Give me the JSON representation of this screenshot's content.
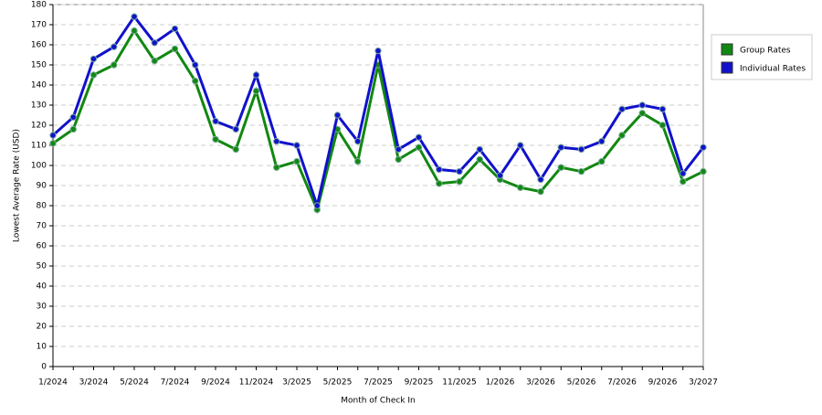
{
  "chart_data": {
    "type": "line",
    "xlabel": "Month of Check In",
    "ylabel": "Lowest Average Rate (USD)",
    "categories": [
      "1/2024",
      null,
      "3/2024",
      null,
      "5/2024",
      null,
      "7/2024",
      null,
      "9/2024",
      null,
      "11/2024",
      null,
      "3/2025",
      null,
      "5/2025",
      null,
      "7/2025",
      null,
      "9/2025",
      null,
      "11/2025",
      null,
      "1/2026",
      null,
      "3/2026",
      null,
      "5/2026",
      null,
      "7/2026",
      null,
      "9/2026",
      null,
      "3/2027"
    ],
    "series": [
      {
        "name": "Group Rates",
        "color": "#118811",
        "values": [
          111,
          118,
          145,
          150,
          167,
          152,
          158,
          142,
          113,
          108,
          137,
          99,
          102,
          78,
          118,
          102,
          150,
          103,
          109,
          91,
          92,
          103,
          93,
          89,
          87,
          99,
          97,
          102,
          115,
          126,
          120,
          92,
          97
        ]
      },
      {
        "name": "Individual Rates",
        "color": "#1111cc",
        "values": [
          115,
          124,
          153,
          159,
          174,
          161,
          168,
          150,
          122,
          118,
          145,
          112,
          110,
          80,
          125,
          112,
          157,
          108,
          114,
          98,
          97,
          108,
          95,
          110,
          93,
          109,
          108,
          112,
          128,
          130,
          128,
          96,
          109
        ]
      }
    ],
    "ylim": [
      0,
      180
    ],
    "yticks": [
      0,
      10,
      20,
      30,
      40,
      50,
      60,
      70,
      80,
      90,
      100,
      110,
      120,
      130,
      140,
      150,
      160,
      170,
      180
    ],
    "grid": true,
    "legend": "top-right"
  }
}
